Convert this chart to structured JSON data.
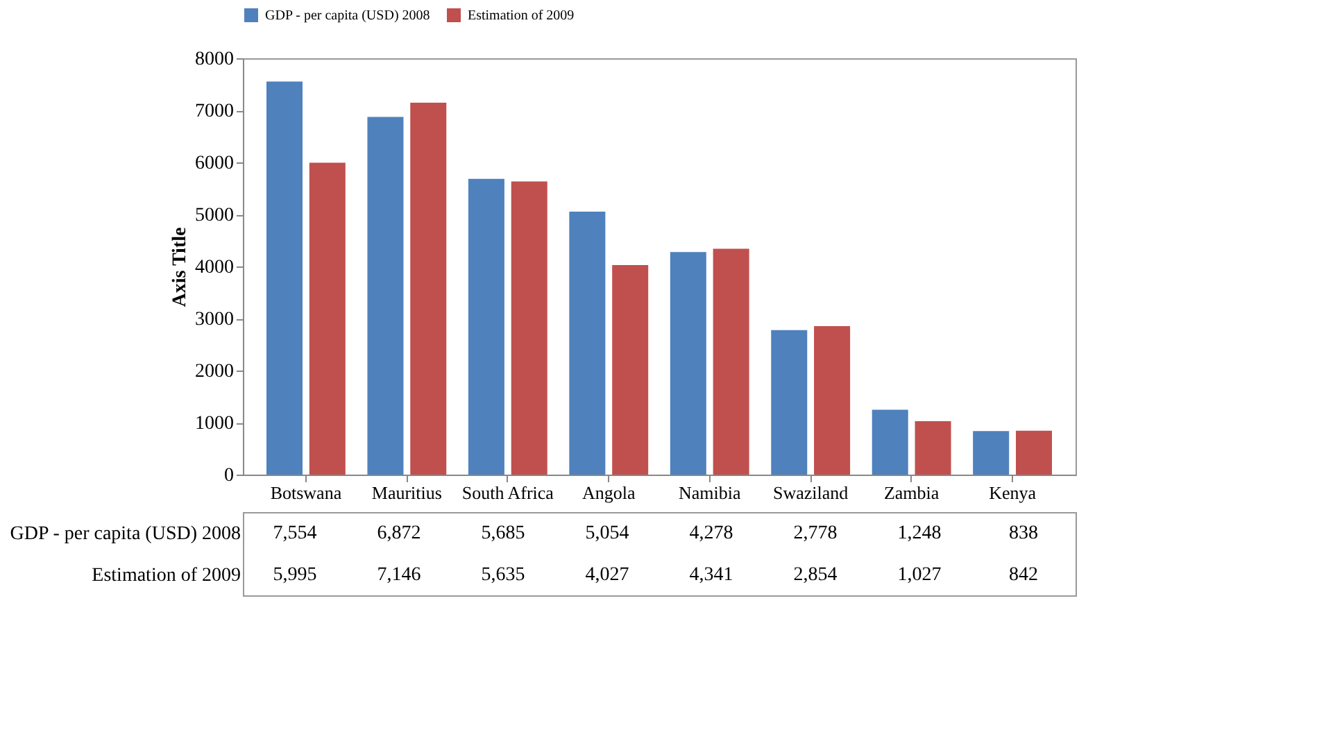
{
  "chart_data": {
    "type": "bar",
    "ylabel": "Axis Title",
    "categories": [
      "Botswana",
      "Mauritius",
      "South Africa",
      "Angola",
      "Namibia",
      "Swaziland",
      "Zambia",
      "Kenya"
    ],
    "series": [
      {
        "name": "GDP - per capita (USD) 2008",
        "color": "#4f81bd",
        "values": [
          7554,
          6872,
          5685,
          5054,
          4278,
          2778,
          1248,
          838
        ],
        "value_labels": [
          "7,554",
          "6,872",
          "5,685",
          "5,054",
          "4,278",
          "2,778",
          "1,248",
          "838"
        ]
      },
      {
        "name": "Estimation of 2009",
        "color": "#c0504d",
        "values": [
          5995,
          7146,
          5635,
          4027,
          4341,
          2854,
          1027,
          842
        ],
        "value_labels": [
          "5,995",
          "7,146",
          "5,635",
          "4,027",
          "4,341",
          "2,854",
          "1,027",
          "842"
        ]
      }
    ],
    "ylim": [
      0,
      8000
    ],
    "yticks": [
      0,
      1000,
      2000,
      3000,
      4000,
      5000,
      6000,
      7000,
      8000
    ],
    "grid": false,
    "legend": "top"
  }
}
